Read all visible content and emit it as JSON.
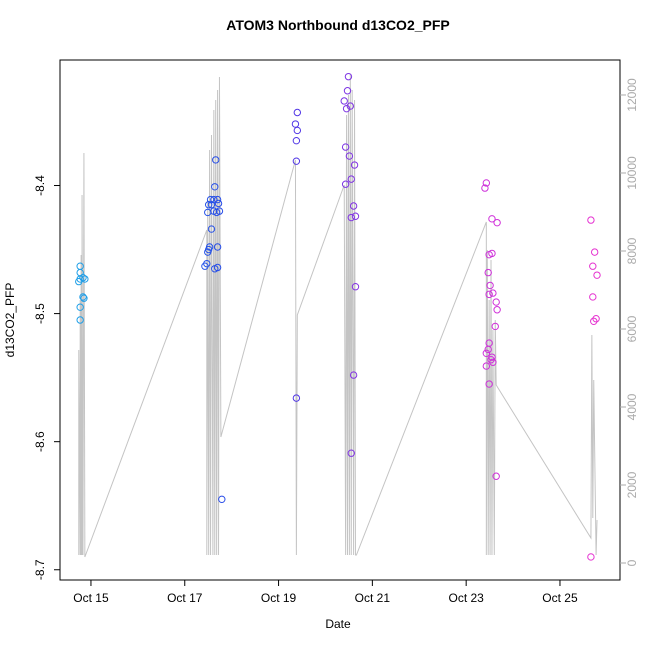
{
  "chart_data": {
    "type": "scatter",
    "title": "ATOM3 Northbound d13CO2_PFP",
    "xlabel": "Date",
    "ylabel": "d13CO2_PFP",
    "xlim": [
      14.34,
      26.28
    ],
    "xticks": [
      {
        "value": 15,
        "label": "Oct 15"
      },
      {
        "value": 17,
        "label": "Oct 17"
      },
      {
        "value": 19,
        "label": "Oct 19"
      },
      {
        "value": 21,
        "label": "Oct 21"
      },
      {
        "value": 23,
        "label": "Oct 23"
      },
      {
        "value": 25,
        "label": "Oct 25"
      }
    ],
    "ylim": [
      -8.708,
      -8.302
    ],
    "yticks": [
      -8.7,
      -8.6,
      -8.5,
      -8.4
    ],
    "y2lim": [
      -436,
      12897
    ],
    "y2ticks": [
      0,
      2000,
      4000,
      6000,
      8000,
      10000,
      12000
    ],
    "point_colors": [
      "#1ea0e8",
      "#2a3ae8",
      "#c030e0",
      "#e633d0"
    ],
    "x": [
      14.77,
      14.77,
      14.74,
      14.77,
      14.83,
      14.87,
      14.83,
      14.85,
      14.77,
      14.77,
      17.66,
      17.64,
      17.55,
      17.62,
      17.7,
      17.51,
      17.57,
      17.49,
      17.62,
      17.68,
      17.74,
      17.72,
      17.57,
      17.53,
      17.51,
      17.49,
      17.7,
      17.47,
      17.43,
      17.64,
      17.7,
      17.79,
      19.4,
      19.36,
      19.4,
      19.38,
      19.38,
      19.38,
      20.49,
      20.47,
      20.4,
      20.45,
      20.53,
      20.43,
      20.51,
      20.62,
      20.55,
      20.43,
      20.6,
      20.55,
      20.64,
      20.64,
      20.6,
      20.55,
      23.43,
      23.4,
      23.55,
      23.66,
      23.47,
      23.55,
      23.49,
      23.51,
      23.49,
      23.57,
      23.64,
      23.66,
      23.62,
      23.49,
      23.43,
      23.47,
      23.55,
      23.53,
      23.57,
      23.43,
      23.49,
      23.64,
      25.66,
      25.74,
      25.7,
      25.79,
      25.7,
      25.77,
      25.72,
      25.66
    ],
    "values": [
      -8.463,
      -8.468,
      -8.475,
      -8.473,
      -8.472,
      -8.473,
      -8.487,
      -8.488,
      -8.495,
      -8.505,
      -8.38,
      -8.401,
      -8.411,
      -8.411,
      -8.411,
      -8.415,
      -8.415,
      -8.421,
      -8.42,
      -8.421,
      -8.42,
      -8.414,
      -8.434,
      -8.448,
      -8.45,
      -8.452,
      -8.448,
      -8.461,
      -8.463,
      -8.465,
      -8.464,
      -8.645,
      -8.343,
      -8.352,
      -8.357,
      -8.365,
      -8.381,
      -8.566,
      -8.315,
      -8.326,
      -8.334,
      -8.34,
      -8.338,
      -8.37,
      -8.377,
      -8.384,
      -8.395,
      -8.399,
      -8.416,
      -8.425,
      -8.424,
      -8.479,
      -8.548,
      -8.609,
      -8.398,
      -8.402,
      -8.426,
      -8.429,
      -8.468,
      -8.453,
      -8.454,
      -8.478,
      -8.485,
      -8.484,
      -8.491,
      -8.497,
      -8.51,
      -8.523,
      -8.531,
      -8.528,
      -8.534,
      -8.536,
      -8.538,
      -8.541,
      -8.555,
      -8.627,
      -8.427,
      -8.452,
      -8.463,
      -8.47,
      -8.487,
      -8.504,
      -8.506,
      -8.69
    ],
    "line_series": {
      "axis": "y2",
      "color": "#c4c4c4",
      "x": [
        14.74,
        14.74,
        14.77,
        14.77,
        14.79,
        14.79,
        14.81,
        14.81,
        14.83,
        14.85,
        14.87,
        17.47,
        17.47,
        17.49,
        17.51,
        17.53,
        17.55,
        17.57,
        17.6,
        17.62,
        17.64,
        17.66,
        17.68,
        17.7,
        17.72,
        17.74,
        17.77,
        19.36,
        19.38,
        19.4,
        20.4,
        20.43,
        20.45,
        20.47,
        20.49,
        20.51,
        20.53,
        20.55,
        20.57,
        20.6,
        20.62,
        20.64,
        20.66,
        23.43,
        23.43,
        23.45,
        23.47,
        23.49,
        23.51,
        23.53,
        23.55,
        23.57,
        23.6,
        23.62,
        23.64,
        25.66,
        25.68,
        25.7,
        25.72,
        25.74,
        25.77,
        25.79
      ],
      "values": [
        205,
        5462,
        205,
        6744,
        205,
        7897,
        205,
        9436,
        205,
        10513,
        154,
        8538,
        205,
        9308,
        205,
        10590,
        205,
        10974,
        205,
        11615,
        205,
        11872,
        205,
        12128,
        205,
        12462,
        3231,
        10333,
        205,
        6359,
        9692,
        205,
        11487,
        205,
        12000,
        205,
        12513,
        205,
        12128,
        205,
        11872,
        205,
        205,
        8744,
        205,
        8026,
        205,
        6744,
        205,
        7769,
        205,
        5974,
        205,
        6231,
        4564,
        641,
        5846,
        1154,
        4692,
        2897,
        205,
        1103
      ]
    }
  }
}
